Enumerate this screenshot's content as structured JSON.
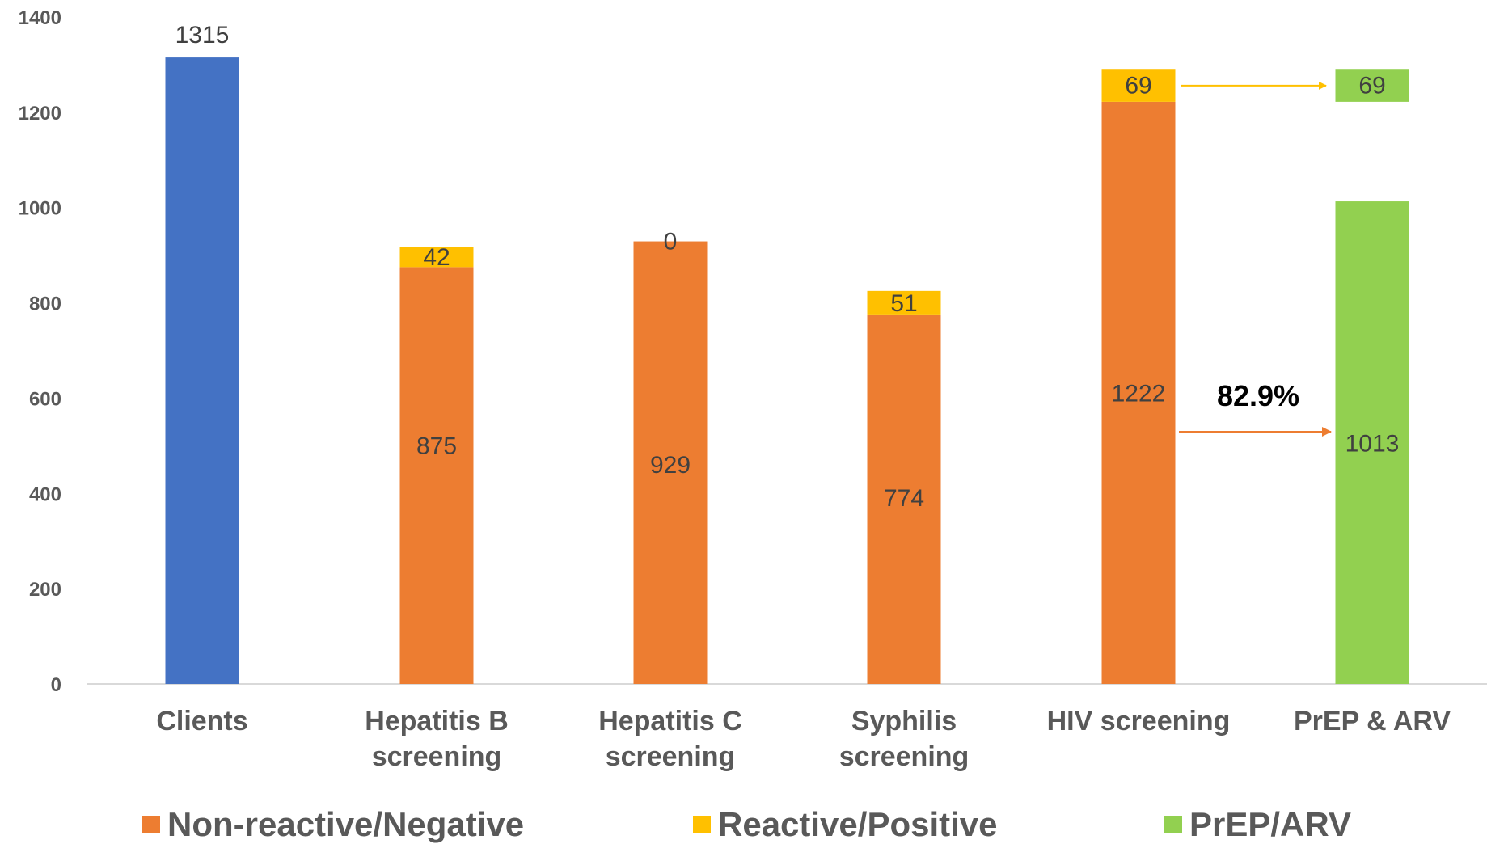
{
  "chart_data": {
    "type": "bar",
    "stacked": true,
    "categories": [
      [
        "Clients"
      ],
      [
        "Hepatitis B",
        "screening"
      ],
      [
        "Hepatitis C",
        "screening"
      ],
      [
        "Syphilis",
        "screening"
      ],
      [
        "HIV screening"
      ],
      [
        "PrEP & ARV"
      ]
    ],
    "ylim": [
      0,
      1400
    ],
    "yticks": [
      0,
      200,
      400,
      600,
      800,
      1000,
      1200,
      1400
    ],
    "grid": false,
    "legend_position": "bottom",
    "series": [
      {
        "key": "clients",
        "color": "#4472C4",
        "values": [
          1315,
          null,
          null,
          null,
          null,
          null
        ]
      },
      {
        "key": "nonreactive",
        "name": "Non-reactive/Negative",
        "color": "#ED7D31",
        "values": [
          null,
          875,
          929,
          774,
          1222,
          null
        ]
      },
      {
        "key": "reactive",
        "name": "Reactive/Positive",
        "color": "#FFC000",
        "values": [
          null,
          42,
          0,
          51,
          69,
          null
        ]
      },
      {
        "key": "prep",
        "name": "PrEP/ARV",
        "color": "#92D050",
        "values": [
          null,
          null,
          null,
          null,
          null,
          1013
        ]
      },
      {
        "key": "prep_reactive",
        "color": "#92D050",
        "values": [
          null,
          null,
          null,
          null,
          null,
          69
        ]
      }
    ],
    "data_labels": [
      {
        "text": "1315"
      },
      {
        "text": "875"
      },
      {
        "text": "42"
      },
      {
        "text": "929"
      },
      {
        "text": "0"
      },
      {
        "text": "774"
      },
      {
        "text": "51"
      },
      {
        "text": "1222"
      },
      {
        "text": "69"
      },
      {
        "text": "69"
      },
      {
        "text": "1013"
      }
    ],
    "annotations": [
      {
        "text": "82.9%"
      }
    ]
  },
  "legend": [
    {
      "label": "Non-reactive/Negative",
      "color": "#ED7D31"
    },
    {
      "label": "Reactive/Positive",
      "color": "#FFC000"
    },
    {
      "label": "PrEP/ARV",
      "color": "#92D050"
    }
  ],
  "colors": {
    "axis": "#D9D9D9",
    "tick_text": "#595959",
    "arrow_orange": "#ED7D31",
    "arrow_yellow": "#FFC000"
  }
}
